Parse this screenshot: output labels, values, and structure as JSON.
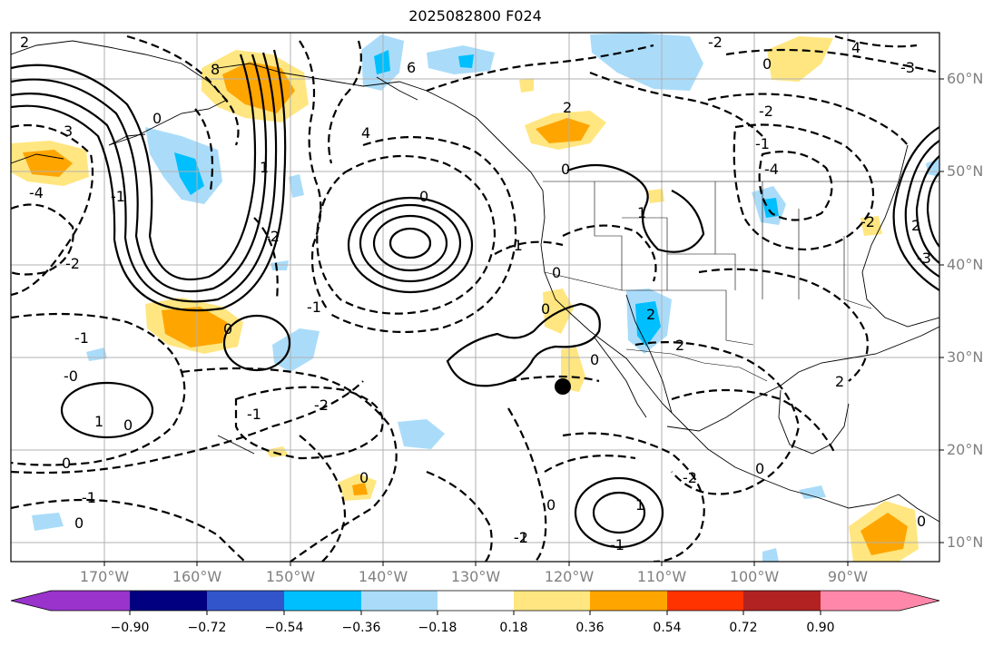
{
  "title": "2025082800 F024",
  "latitude_labels": [
    "60°N",
    "50°N",
    "40°N",
    "30°N",
    "20°N",
    "10°N"
  ],
  "longitude_labels": [
    "170°W",
    "160°W",
    "150°W",
    "140°W",
    "130°W",
    "120°W",
    "110°W",
    "100°W",
    "90°W"
  ],
  "colorbar": {
    "ticks": [
      "−0.90",
      "−0.72",
      "−0.54",
      "−0.36",
      "−0.18",
      "0.18",
      "0.36",
      "0.54",
      "0.72",
      "0.90"
    ],
    "colors": [
      "#9933cc",
      "#000080",
      "#3355cc",
      "#00bfff",
      "#aadcfa",
      "#ffffff",
      "#ffe680",
      "#ffa500",
      "#ff3300",
      "#b22222",
      "#ff88aa"
    ]
  },
  "contour_labels": [
    "2",
    "3",
    "8",
    "6",
    "4",
    "2",
    "0",
    "-4",
    "0",
    "-1",
    "-2",
    "1",
    "0",
    "-2",
    "0",
    "-1",
    "-1",
    "-1",
    "1",
    "2",
    "-0",
    "-2",
    "0",
    "-1",
    "2",
    "1",
    "0",
    "0",
    "-1",
    "2",
    "0",
    "-2",
    "0",
    "-3",
    "-2",
    "-1",
    "0",
    "-4",
    "-2",
    "0",
    "-2",
    "0",
    "1",
    "-1",
    "0",
    "4",
    "-1",
    "-2",
    "-3",
    "0",
    "2",
    "0"
  ],
  "point_marker": "point-marker"
}
